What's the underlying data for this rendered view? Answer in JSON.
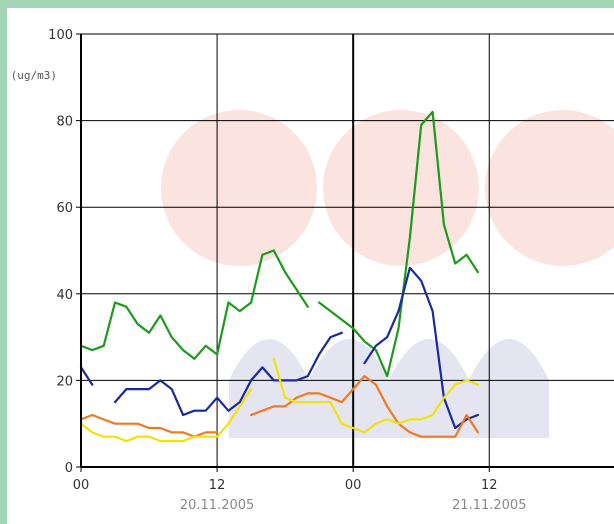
{
  "chart_data": {
    "type": "line",
    "ylabel": "(ug/m3)",
    "ylim": [
      0,
      100
    ],
    "xlim": [
      0,
      47
    ],
    "yticks": [
      "0",
      "20",
      "40",
      "60",
      "80",
      "100"
    ],
    "xticks": [
      {
        "hour": 0,
        "label": "00"
      },
      {
        "hour": 12,
        "label": "12"
      },
      {
        "hour": 24,
        "label": "00"
      },
      {
        "hour": 36,
        "label": "12"
      }
    ],
    "dates": [
      {
        "hour": 12,
        "label": "20.11.2005"
      },
      {
        "hour": 36,
        "label": "21.11.2005"
      }
    ],
    "grid": true,
    "series": [
      {
        "color": "#1c9a1c",
        "x": [
          0,
          1,
          2,
          3,
          4,
          5,
          6,
          7,
          8,
          9,
          10,
          11,
          12,
          13,
          14,
          15,
          16,
          17,
          18,
          19,
          20,
          null,
          21,
          22,
          23,
          24,
          25,
          26,
          27,
          28,
          29,
          30,
          31,
          32,
          33,
          34,
          35
        ],
        "y": [
          28,
          27,
          28,
          38,
          37,
          33,
          31,
          35,
          30,
          27,
          25,
          28,
          26,
          38,
          36,
          38,
          49,
          50,
          45,
          41,
          37,
          null,
          38,
          36,
          34,
          32,
          29,
          27,
          21,
          32,
          53,
          79,
          82,
          56,
          47,
          49,
          45
        ]
      },
      {
        "color": "#1a2a9a",
        "x": [
          0,
          1,
          null,
          3,
          4,
          5,
          6,
          7,
          8,
          9,
          10,
          11,
          12,
          13,
          14,
          15,
          16,
          17,
          18,
          19,
          20,
          21,
          22,
          23,
          24,
          null,
          25,
          26,
          27,
          28,
          29,
          30,
          31,
          32,
          33,
          34,
          35
        ],
        "y": [
          23,
          19,
          null,
          15,
          18,
          18,
          18,
          20,
          18,
          12,
          13,
          13,
          16,
          13,
          15,
          20,
          23,
          20,
          20,
          20,
          21,
          26,
          30,
          31,
          null,
          null,
          24,
          28,
          30,
          36,
          46,
          43,
          36,
          16,
          9,
          11,
          12
        ]
      },
      {
        "color": "#ee7a22",
        "x": [
          0,
          1,
          2,
          3,
          4,
          5,
          6,
          7,
          8,
          9,
          10,
          11,
          12,
          null,
          15,
          16,
          17,
          18,
          19,
          20,
          21,
          22,
          23,
          24,
          25,
          26,
          27,
          28,
          29,
          30,
          31,
          32,
          33,
          34,
          35
        ],
        "y": [
          11,
          12,
          11,
          10,
          10,
          10,
          9,
          9,
          8,
          8,
          7,
          8,
          8,
          null,
          12,
          13,
          14,
          14,
          16,
          17,
          17,
          16,
          15,
          18,
          21,
          19,
          14,
          10,
          8,
          7,
          7,
          7,
          7,
          12,
          8
        ]
      },
      {
        "color": "#f2e20a",
        "x": [
          0,
          1,
          2,
          3,
          4,
          5,
          6,
          7,
          8,
          9,
          10,
          11,
          12,
          13,
          14,
          15,
          null,
          17,
          18,
          19,
          20,
          21,
          22,
          23,
          24,
          25,
          26,
          27,
          28,
          29,
          30,
          31,
          32,
          33,
          34,
          35
        ],
        "y": [
          10,
          8,
          7,
          7,
          6,
          7,
          7,
          6,
          6,
          6,
          7,
          7,
          7,
          10,
          14,
          18,
          null,
          25,
          16,
          15,
          15,
          15,
          15,
          10,
          9,
          8,
          10,
          11,
          10,
          11,
          11,
          12,
          16,
          19,
          20,
          19
        ]
      }
    ]
  }
}
